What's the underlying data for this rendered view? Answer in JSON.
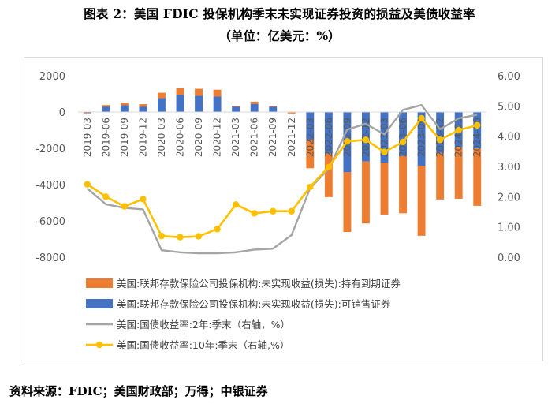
{
  "title": "图表 2：美国 FDIC 投保机构季末未实现证券投资的损益及美债收益率",
  "subtitle": "（单位：亿美元：%）",
  "source": "资料来源：FDIC；美国财政部；万得；中银证券",
  "chart_data": {
    "type": "bar",
    "categories": [
      "2019-03",
      "2019-06",
      "2019-09",
      "2019-12",
      "2020-03",
      "2020-06",
      "2020-09",
      "2020-12",
      "2021-03",
      "2021-06",
      "2021-09",
      "2021-12",
      "2022-03",
      "2022-06",
      "2022-09",
      "2022-12",
      "2023-03",
      "2023-06",
      "2023-09",
      "2023-12",
      "2024-03",
      "2024-06"
    ],
    "y_left": {
      "ticks": [
        "2000",
        "0",
        "-2000",
        "-4000",
        "-6000",
        "-8000"
      ],
      "min": -8000,
      "max": 2000
    },
    "y_right": {
      "ticks": [
        "6.00",
        "5.00",
        "4.00",
        "3.00",
        "2.00",
        "1.00",
        "0.00"
      ],
      "min": 0,
      "max": 6
    },
    "stacked": true,
    "grid": false,
    "legend_position": "bottom",
    "series": [
      {
        "name": "美国:联邦存款保险公司投保机构:未实现收益(损失):持有到期证券",
        "type": "bar",
        "axis": "left",
        "color": "#ED7D31",
        "values": [
          -30,
          80,
          150,
          130,
          300,
          360,
          380,
          380,
          40,
          120,
          40,
          -50,
          -1570,
          -2410,
          -3290,
          -3410,
          -2860,
          -3150,
          -3850,
          -2570,
          -2860,
          -3160
        ]
      },
      {
        "name": "美国:联邦存款保险公司投保机构:未实现收益(损失):可销售证券",
        "type": "bar",
        "axis": "left",
        "color": "#4472C4",
        "values": [
          -50,
          300,
          370,
          300,
          760,
          950,
          900,
          850,
          300,
          450,
          300,
          -30,
          -1530,
          -2280,
          -3320,
          -2730,
          -2790,
          -2430,
          -2970,
          -2250,
          -1920,
          -2010
        ]
      },
      {
        "name": "美国:国债收益率:2年:季末（右轴，%）",
        "type": "line",
        "axis": "right",
        "color": "#A5A5A5",
        "values": [
          2.27,
          1.75,
          1.63,
          1.58,
          0.23,
          0.16,
          0.13,
          0.13,
          0.16,
          0.25,
          0.28,
          0.73,
          2.28,
          2.92,
          4.22,
          4.41,
          4.06,
          4.87,
          5.03,
          4.23,
          4.59,
          4.71
        ]
      },
      {
        "name": "美国:国债收益率:10年:季末（右轴,%）",
        "type": "line",
        "axis": "right",
        "color": "#FFC000",
        "values": [
          2.41,
          2.0,
          1.68,
          1.92,
          0.7,
          0.66,
          0.69,
          0.93,
          1.74,
          1.45,
          1.52,
          1.52,
          2.32,
          2.98,
          3.83,
          3.88,
          3.48,
          3.81,
          4.59,
          3.88,
          4.2,
          4.36
        ]
      }
    ]
  }
}
